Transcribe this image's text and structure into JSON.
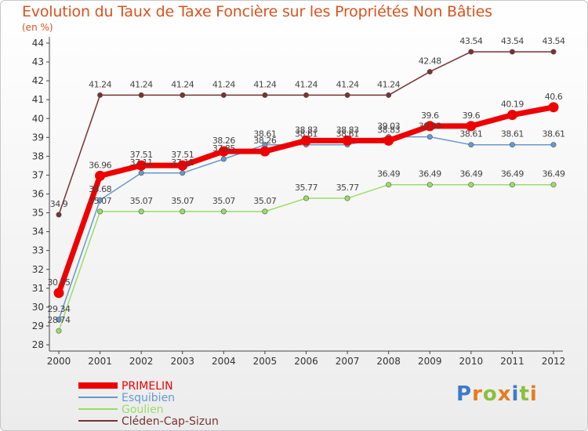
{
  "chart_data": {
    "type": "line",
    "title": "Evolution du Taux de Taxe Foncière sur les Propriétés Non Bâties",
    "unit": "(en %)",
    "x": [
      "2000",
      "2001",
      "2002",
      "2003",
      "2004",
      "2005",
      "2006",
      "2007",
      "2008",
      "2009",
      "2010",
      "2011",
      "2012"
    ],
    "ylim": [
      28,
      44
    ],
    "yticks": [
      "28",
      "29",
      "30",
      "31",
      "32",
      "33",
      "34",
      "35",
      "36",
      "37",
      "38",
      "39",
      "40",
      "41",
      "42",
      "43",
      "44"
    ],
    "grid": false,
    "series": [
      {
        "name": "PRIMELIN",
        "color": "#ee0000",
        "values": [
          30.75,
          36.96,
          37.51,
          37.51,
          38.26,
          38.26,
          38.83,
          38.83,
          38.83,
          39.6,
          39.6,
          40.19,
          40.6
        ],
        "labels": [
          "30.75",
          "36.96",
          "37.51",
          "37.51",
          "38.26",
          "38.26",
          "38.83",
          "38.83",
          "38.83",
          "39.6",
          "39.6",
          "40.19",
          "40.6"
        ]
      },
      {
        "name": "Esquibien",
        "color": "#6699cc",
        "values": [
          29.34,
          35.68,
          37.11,
          37.11,
          37.85,
          38.61,
          38.61,
          38.61,
          39.03,
          39.03,
          38.61,
          38.61,
          38.61
        ],
        "labels": [
          "29.34",
          "35.68",
          "37.11",
          "37.11",
          "37.85",
          "38.61",
          "38.61",
          "38.61",
          "39.03",
          "39.03",
          "38.61",
          "38.61",
          "38.61"
        ]
      },
      {
        "name": "Goulien",
        "color": "#99dd66",
        "values": [
          28.74,
          35.07,
          35.07,
          35.07,
          35.07,
          35.07,
          35.77,
          35.77,
          36.49,
          36.49,
          36.49,
          36.49,
          36.49
        ],
        "labels": [
          "28.74",
          "35.07",
          "35.07",
          "35.07",
          "35.07",
          "35.07",
          "35.77",
          "35.77",
          "36.49",
          "36.49",
          "36.49",
          "36.49",
          "36.49"
        ]
      },
      {
        "name": "Cléden-Cap-Sizun",
        "color": "#773333",
        "values": [
          34.9,
          41.24,
          41.24,
          41.24,
          41.24,
          41.24,
          41.24,
          41.24,
          41.24,
          42.48,
          43.54,
          43.54,
          43.54
        ],
        "labels": [
          "34.9",
          "41.24",
          "41.24",
          "41.24",
          "41.24",
          "41.24",
          "41.24",
          "41.24",
          "41.24",
          "42.48",
          "43.54",
          "43.54",
          "43.54"
        ]
      }
    ]
  },
  "logo": {
    "letters": [
      "P",
      "r",
      "o",
      "x",
      "i",
      "t",
      "i"
    ],
    "colors": [
      "#3d7ac9",
      "#e77d1e",
      "#8dbf3b",
      "#e77d1e",
      "#3d7ac9",
      "#8dbf3b",
      "#e77d1e"
    ]
  }
}
